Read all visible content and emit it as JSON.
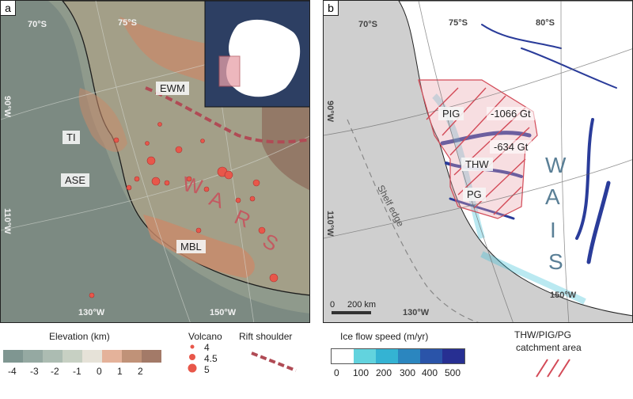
{
  "panel_a": {
    "letter": "a",
    "coords": {
      "lat70": "70°S",
      "lat75": "75°S",
      "lon90": "90°W",
      "lon110": "110°W",
      "lon130": "130°W",
      "lon150": "150°W"
    },
    "labels": {
      "ewm": "EWM",
      "ti": "TI",
      "ase": "ASE",
      "mbl": "MBL",
      "wars": [
        "W",
        "A",
        "R",
        "S"
      ]
    },
    "colors": {
      "ocean_deep": "#6f7f78",
      "ocean_mid": "#8a958a",
      "land": "#a29d86",
      "high": "#c98a6a",
      "volcano": "#e8574a",
      "rift": "#b04b55"
    }
  },
  "panel_b": {
    "letter": "b",
    "coords": {
      "lat70": "70°S",
      "lat75": "75°S",
      "lat80": "80°S",
      "lon90": "90°W",
      "lon110": "110°W",
      "lon130": "130°W",
      "lon150": "150°W"
    },
    "labels": {
      "pig": "PIG",
      "thw": "THW",
      "pg": "PG",
      "pig_loss": "-1066 Gt",
      "thw_loss": "-634 Gt",
      "shelf": "Shelf edge",
      "wais": [
        "W",
        "A",
        "I",
        "S"
      ],
      "scale": "200 km",
      "scale_zero": "0"
    },
    "colors": {
      "ocean": "#cfcfcf",
      "ice": "#ffffff",
      "flow_dark": "#2a3c9a",
      "flow_light": "#39c0d8",
      "hatch": "#d34a57"
    }
  },
  "legend": {
    "elevation_title": "Elevation (km)",
    "elevation_ticks": [
      "-4",
      "-3",
      "-2",
      "-1",
      "0",
      "1",
      "2"
    ],
    "elevation_colors": [
      "#7f9691",
      "#95a9a2",
      "#acbcb2",
      "#c7d0c3",
      "#e6e2d8",
      "#e4b29a",
      "#c09278",
      "#a37a68"
    ],
    "volcano_title": "Volcano",
    "volcano_sizes": [
      "4",
      "4.5",
      "5"
    ],
    "rift_title": "Rift shoulder",
    "ice_title": "Ice flow speed (m/yr)",
    "ice_ticks": [
      "0",
      "100",
      "200",
      "300",
      "400",
      "500"
    ],
    "ice_colors": [
      "#ffffff",
      "#62d3de",
      "#34b3d3",
      "#2b86bf",
      "#2a54a9",
      "#272f92"
    ],
    "catchment_title": "THW/PIG/PG",
    "catchment_sub": "catchment area"
  }
}
